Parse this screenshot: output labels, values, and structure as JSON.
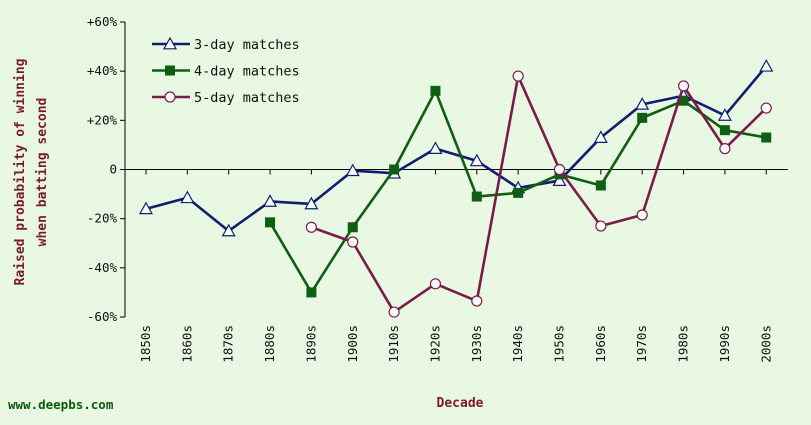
{
  "chart_data": {
    "type": "line",
    "title": "",
    "xlabel": "Decade",
    "ylabel_line1": "Raised probability of winning",
    "ylabel_line2": "when batting second",
    "categories": [
      "1850s",
      "1860s",
      "1870s",
      "1880s",
      "1890s",
      "1900s",
      "1910s",
      "1920s",
      "1930s",
      "1940s",
      "1950s",
      "1960s",
      "1970s",
      "1980s",
      "1990s",
      "2000s"
    ],
    "y_ticks": [
      {
        "value": 60,
        "label": "+60%"
      },
      {
        "value": 40,
        "label": "+40%"
      },
      {
        "value": 20,
        "label": "+20%"
      },
      {
        "value": 0,
        "label": "0"
      },
      {
        "value": -20,
        "label": "-20%"
      },
      {
        "value": -40,
        "label": "-40%"
      },
      {
        "value": -60,
        "label": "-60%"
      }
    ],
    "ylim": [
      -60,
      60
    ],
    "grid": false,
    "legend_position": "top-left",
    "series": [
      {
        "name": "3-day matches",
        "color": "#0d1f6e",
        "marker": "triangle",
        "values": [
          -16,
          -11.5,
          -25,
          -13,
          -14,
          -0.5,
          -1.5,
          8.5,
          3.5,
          -7.5,
          -4.5,
          13,
          26.5,
          30,
          22,
          42
        ]
      },
      {
        "name": "4-day matches",
        "color": "#0f5e12",
        "marker": "square",
        "values": [
          null,
          null,
          null,
          -21.5,
          -50,
          -23.5,
          0,
          32,
          -11,
          -9.5,
          -2,
          -6.5,
          21,
          28,
          16,
          13
        ]
      },
      {
        "name": "5-day matches",
        "color": "#7a1c4a",
        "marker": "circle",
        "values": [
          null,
          null,
          null,
          null,
          -23.5,
          -29.5,
          -58,
          -46.5,
          -53.5,
          38,
          0,
          -23,
          -18.5,
          34,
          8.5,
          25
        ]
      }
    ]
  },
  "watermark": "www.deepbs.com"
}
